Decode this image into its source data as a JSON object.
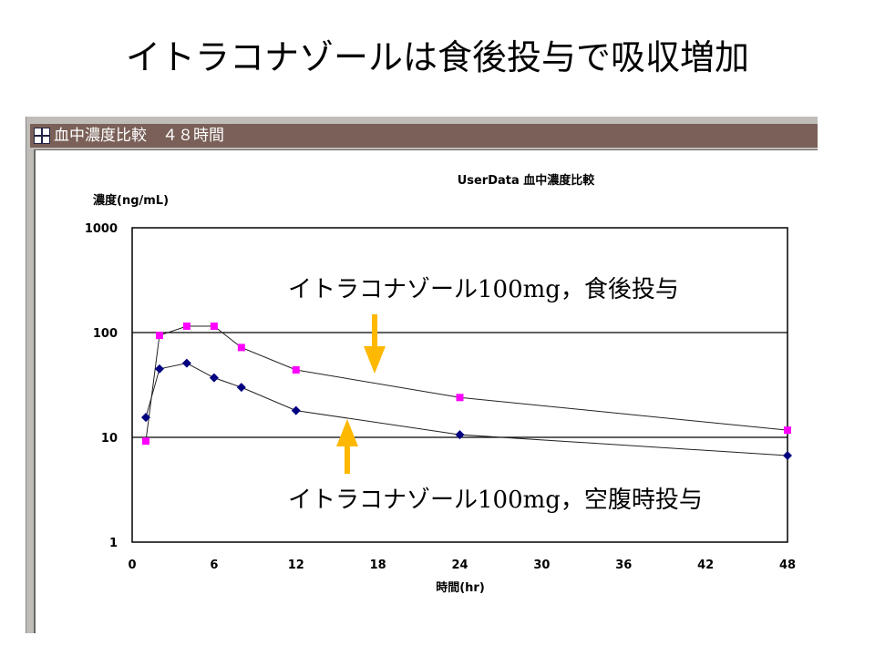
{
  "slide_title": "イトラコナゾールは食後投与で吸収増加",
  "window": {
    "title": "血中濃度比較　４８時間",
    "icon": "table-icon"
  },
  "annotations": {
    "fed": "イトラコナゾール100mg，食後投与",
    "fasted": "イトラコナゾール100mg，空腹時投与"
  },
  "colors": {
    "fed": "#ff00ff",
    "fasted": "#000080",
    "arrow": "#ffb800"
  },
  "chart_data": {
    "type": "line",
    "title": "UserData 血中濃度比較",
    "xlabel": "時間(hr)",
    "ylabel": "濃度(ng/mL)",
    "yscale": "log",
    "ylim": [
      1,
      1000
    ],
    "xlim": [
      0,
      48
    ],
    "xticks": [
      "0",
      "6",
      "12",
      "18",
      "24",
      "30",
      "36",
      "42",
      "48"
    ],
    "yticks": [
      "1",
      "10",
      "100",
      "1000"
    ],
    "grid": "horizontal",
    "x": [
      1,
      2,
      4,
      6,
      8,
      12,
      24,
      48
    ],
    "series": [
      {
        "name": "食後投与",
        "marker": "square",
        "values": [
          9.2,
          94,
          115,
          115,
          72,
          44,
          24,
          11.7
        ]
      },
      {
        "name": "空腹時投与",
        "marker": "diamond",
        "values": [
          15.5,
          45,
          51,
          37,
          30,
          18,
          10.6,
          6.7
        ]
      }
    ]
  }
}
